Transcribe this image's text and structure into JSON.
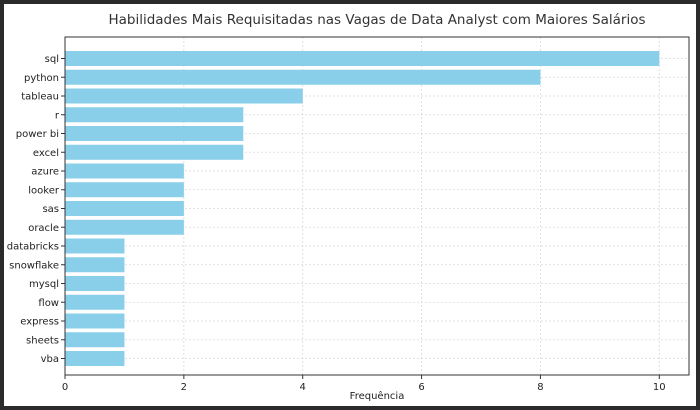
{
  "chart_data": {
    "type": "bar",
    "orientation": "horizontal",
    "title": "Habilidades Mais Requisitadas nas Vagas de Data Analyst com Maiores Salários",
    "xlabel": "Frequência",
    "ylabel": "",
    "xlim": [
      0,
      10.5
    ],
    "xticks": [
      0,
      2,
      4,
      6,
      8,
      10
    ],
    "grid": true,
    "bar_color": "#89CFEA",
    "categories": [
      "sql",
      "python",
      "tableau",
      "r",
      "power bi",
      "excel",
      "azure",
      "looker",
      "sas",
      "oracle",
      "databricks",
      "snowflake",
      "mysql",
      "flow",
      "express",
      "sheets",
      "vba"
    ],
    "values": [
      10,
      8,
      4,
      3,
      3,
      3,
      2,
      2,
      2,
      2,
      1,
      1,
      1,
      1,
      1,
      1,
      1
    ]
  }
}
